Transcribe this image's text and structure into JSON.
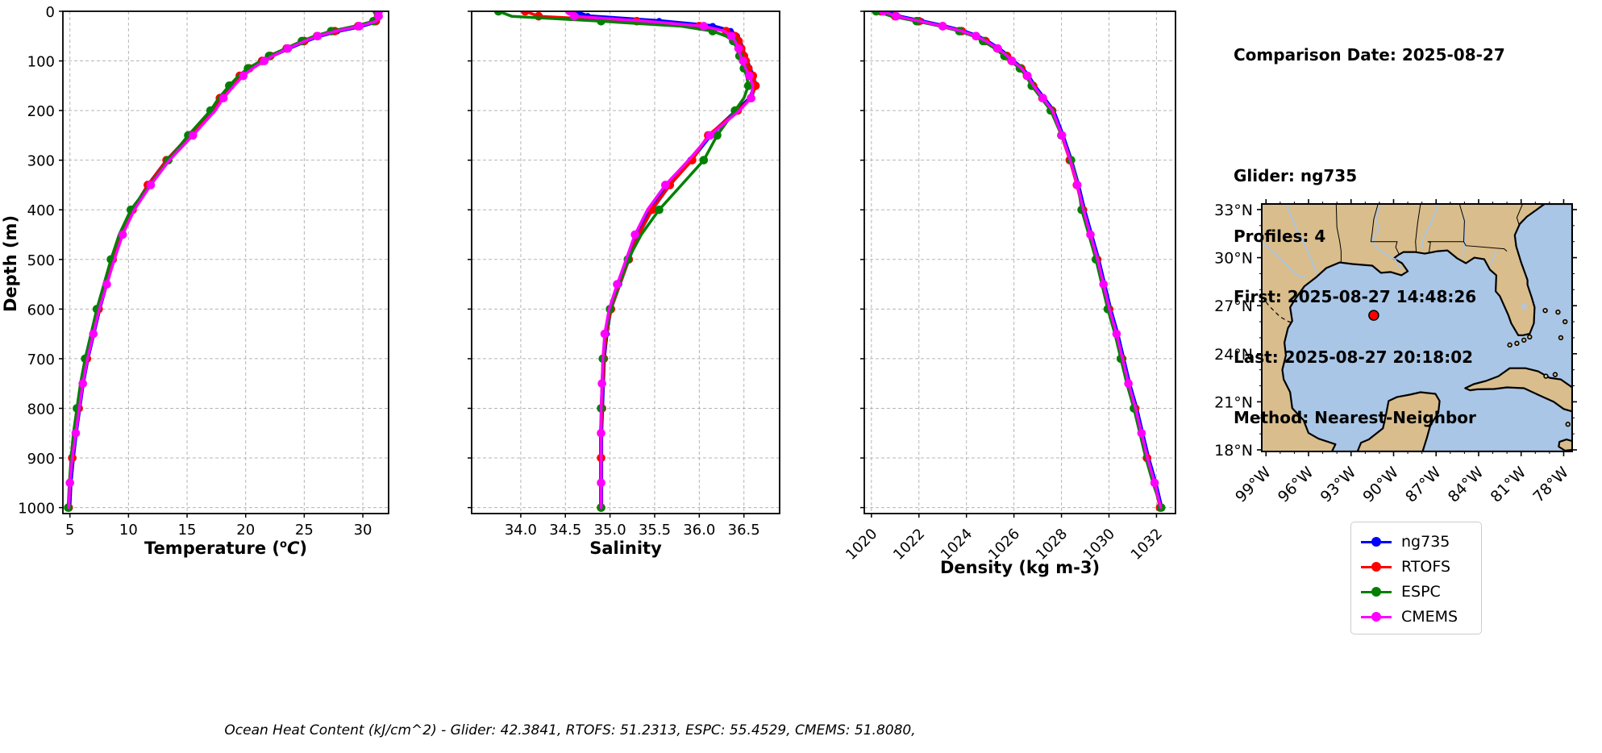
{
  "info_panel": {
    "title": "Comparison Date: 2025-08-27",
    "lines": [
      "Glider: ng735",
      "Profiles: 4",
      "First: 2025-08-27 14:48:26",
      "Last: 2025-08-27 20:18:02",
      "Method: Nearest-Neighbor"
    ]
  },
  "footer": "Ocean Heat Content (kJ/cm^2) - Glider: 42.3841,  RTOFS: 51.2313,  ESPC: 55.4529,  CMEMS: 51.8080,",
  "legend": {
    "items": [
      {
        "label": "ng735",
        "color": "#0000ff"
      },
      {
        "label": "RTOFS",
        "color": "#ff0000"
      },
      {
        "label": "ESPC",
        "color": "#008000"
      },
      {
        "label": "CMEMS",
        "color": "#ff00ff"
      }
    ]
  },
  "axes": {
    "ylabel": "Depth (m)",
    "depth_ticks": [
      0,
      100,
      200,
      300,
      400,
      500,
      600,
      700,
      800,
      900,
      1000
    ],
    "depth_lim": [
      0,
      1012
    ]
  },
  "chart_data": {
    "type": "line",
    "orientation": "vertical-profile",
    "grid": true,
    "legend_position": "lower right of figure",
    "depths": [
      0,
      10,
      20,
      30,
      40,
      50,
      60,
      75,
      90,
      100,
      115,
      130,
      150,
      175,
      200,
      250,
      300,
      350,
      400,
      450,
      500,
      550,
      600,
      650,
      700,
      750,
      800,
      850,
      900,
      950,
      1000
    ],
    "panels": [
      {
        "id": "temperature",
        "xlabel_pre": "Temperature (",
        "xlabel_sup": "o",
        "xlabel_it": "C",
        "xlabel_post": ")",
        "xlim": [
          4.4,
          32.2
        ],
        "xticks": [
          5,
          10,
          15,
          20,
          25,
          30
        ],
        "xtick_labels": [
          "5",
          "10",
          "15",
          "20",
          "25",
          "30"
        ],
        "tick_rotation": 0
      },
      {
        "id": "salinity",
        "xlabel": "Salinity",
        "xlim": [
          33.45,
          36.9
        ],
        "xticks": [
          34,
          34.5,
          35,
          35.5,
          36,
          36.5
        ],
        "xtick_labels": [
          "34.0",
          "34.5",
          "35.0",
          "35.5",
          "36.0",
          "36.5"
        ],
        "tick_rotation": 0
      },
      {
        "id": "density",
        "xlabel": "Density (kg m-3)",
        "xlim": [
          1019.7,
          1032.8
        ],
        "xticks": [
          1020,
          1022,
          1024,
          1026,
          1028,
          1030,
          1032
        ],
        "xtick_labels": [
          "1020",
          "1022",
          "1024",
          "1026",
          "1028",
          "1030",
          "1032"
        ],
        "tick_rotation": 45
      }
    ],
    "series": [
      {
        "name": "ng735-raw-profile",
        "color": "#00c8ff",
        "line_width": 2.5,
        "marker_size": 0,
        "in_legend": false,
        "marker_depths": [],
        "values": {
          "temperature": [
            31.55,
            31.5,
            31.3,
            29.9,
            27.9,
            26.3,
            25.2,
            23.7,
            22.3,
            21.6,
            20.5,
            19.7,
            18.9,
            18.0,
            17.3,
            15.4,
            13.35,
            11.75,
            10.45,
            9.45,
            8.75,
            8.12,
            7.52,
            7.02,
            6.52,
            6.12,
            5.82,
            5.52,
            5.27,
            5.07,
            4.97
          ],
          "salinity": [
            34.62,
            34.77,
            35.57,
            36.17,
            36.37,
            36.44,
            36.47,
            36.5,
            36.52,
            36.55,
            36.58,
            36.62,
            36.64,
            36.59,
            36.44,
            36.14,
            35.92,
            35.68,
            35.48,
            35.33,
            35.22,
            35.12,
            35.02,
            34.97,
            34.94,
            34.93,
            34.92,
            34.91,
            34.91,
            34.91,
            34.91
          ],
          "density": [
            1020.63,
            1021.13,
            1022.13,
            1023.08,
            1023.88,
            1024.48,
            1024.88,
            1025.38,
            1025.78,
            1025.98,
            1026.38,
            1026.63,
            1026.88,
            1027.28,
            1027.68,
            1028.08,
            1028.43,
            1028.73,
            1028.98,
            1029.28,
            1029.58,
            1029.83,
            1030.08,
            1030.38,
            1030.63,
            1030.88,
            1031.18,
            1031.43,
            1031.68,
            1031.98,
            1032.23
          ]
        }
      },
      {
        "name": "ng735",
        "color": "#0000ff",
        "line_width": 5,
        "marker_size": 4,
        "in_legend": true,
        "marker_depths": "all",
        "values": {
          "temperature": [
            31.4,
            31.4,
            31.2,
            29.8,
            27.8,
            26.2,
            25.1,
            23.6,
            22.2,
            21.5,
            20.4,
            19.6,
            18.8,
            17.9,
            17.2,
            15.3,
            13.3,
            11.7,
            10.4,
            9.4,
            8.7,
            8.1,
            7.5,
            7.0,
            6.5,
            6.1,
            5.8,
            5.5,
            5.25,
            5.05,
            4.95
          ],
          "salinity": [
            34.6,
            34.75,
            35.55,
            36.15,
            36.35,
            36.42,
            36.45,
            36.48,
            36.5,
            36.53,
            36.56,
            36.6,
            36.62,
            36.57,
            36.42,
            36.12,
            35.9,
            35.66,
            35.46,
            35.31,
            35.2,
            35.1,
            35.0,
            34.96,
            34.93,
            34.92,
            34.91,
            34.9,
            34.9,
            34.9,
            34.9
          ],
          "density": [
            1020.6,
            1021.1,
            1022.1,
            1023.05,
            1023.85,
            1024.45,
            1024.85,
            1025.35,
            1025.75,
            1025.95,
            1026.35,
            1026.6,
            1026.85,
            1027.25,
            1027.65,
            1028.05,
            1028.4,
            1028.7,
            1028.95,
            1029.25,
            1029.55,
            1029.8,
            1030.05,
            1030.35,
            1030.6,
            1030.85,
            1031.15,
            1031.4,
            1031.65,
            1031.95,
            1032.2
          ]
        }
      },
      {
        "name": "RTOFS",
        "color": "#ff0000",
        "line_width": 3.5,
        "marker_size": 5.3,
        "in_legend": true,
        "marker_depths": [
          0,
          10,
          20,
          30,
          40,
          50,
          60,
          75,
          90,
          100,
          115,
          130,
          150,
          175,
          200,
          250,
          300,
          350,
          400,
          500,
          600,
          700,
          800,
          900,
          1000
        ],
        "values": {
          "temperature": [
            31.3,
            31.3,
            31.1,
            29.6,
            27.6,
            26.1,
            25.0,
            23.5,
            22.1,
            21.4,
            20.3,
            19.5,
            18.7,
            17.8,
            17.1,
            15.2,
            13.25,
            11.65,
            10.35,
            9.35,
            8.65,
            8.05,
            7.45,
            6.95,
            6.45,
            6.05,
            5.75,
            5.45,
            5.2,
            5.0,
            4.9
          ],
          "salinity": [
            34.05,
            34.2,
            35.3,
            36.0,
            36.3,
            36.4,
            36.44,
            36.47,
            36.5,
            36.52,
            36.55,
            36.6,
            36.63,
            36.58,
            36.43,
            36.1,
            35.92,
            35.67,
            35.47,
            35.32,
            35.21,
            35.11,
            35.01,
            34.96,
            34.93,
            34.92,
            34.91,
            34.9,
            34.9,
            34.9,
            34.9
          ],
          "density": [
            1020.4,
            1021.0,
            1022.0,
            1023.0,
            1023.8,
            1024.4,
            1024.8,
            1025.3,
            1025.7,
            1025.9,
            1026.3,
            1026.55,
            1026.8,
            1027.2,
            1027.6,
            1028.0,
            1028.35,
            1028.65,
            1028.9,
            1029.2,
            1029.5,
            1029.75,
            1030.0,
            1030.3,
            1030.55,
            1030.8,
            1031.1,
            1031.35,
            1031.6,
            1031.9,
            1032.15
          ]
        }
      },
      {
        "name": "ESPC",
        "color": "#008000",
        "line_width": 3.5,
        "marker_size": 5.3,
        "in_legend": true,
        "marker_depths": [
          0,
          20,
          40,
          60,
          90,
          115,
          150,
          200,
          250,
          300,
          400,
          500,
          600,
          700,
          800,
          1000
        ],
        "values": {
          "temperature": [
            31.2,
            31.2,
            30.9,
            29.3,
            27.3,
            25.9,
            24.8,
            23.4,
            22.0,
            21.3,
            20.2,
            19.4,
            18.6,
            17.7,
            17.0,
            15.1,
            13.4,
            11.8,
            10.2,
            9.2,
            8.5,
            7.9,
            7.3,
            6.8,
            6.3,
            5.9,
            5.6,
            5.3,
            5.1,
            4.95,
            4.85
          ],
          "salinity": [
            33.75,
            33.9,
            34.9,
            35.8,
            36.15,
            36.3,
            36.38,
            36.42,
            36.45,
            36.48,
            36.5,
            36.53,
            36.55,
            36.5,
            36.4,
            36.2,
            36.05,
            35.8,
            35.55,
            35.35,
            35.2,
            35.1,
            35.0,
            34.95,
            34.92,
            34.91,
            34.9,
            34.9,
            34.9,
            34.9,
            34.9
          ],
          "density": [
            1020.2,
            1020.85,
            1021.9,
            1022.9,
            1023.7,
            1024.3,
            1024.7,
            1025.2,
            1025.6,
            1025.85,
            1026.25,
            1026.5,
            1026.75,
            1027.15,
            1027.55,
            1028.0,
            1028.4,
            1028.7,
            1028.85,
            1029.15,
            1029.45,
            1029.7,
            1029.95,
            1030.25,
            1030.5,
            1030.75,
            1031.05,
            1031.3,
            1031.55,
            1031.85,
            1032.2
          ]
        }
      },
      {
        "name": "CMEMS",
        "color": "#ff00ff",
        "line_width": 3.5,
        "marker_size": 5.3,
        "in_legend": true,
        "marker_depths": [
          0,
          10,
          30,
          50,
          75,
          100,
          130,
          175,
          250,
          350,
          450,
          550,
          650,
          750,
          850,
          950
        ],
        "values": {
          "temperature": [
            31.35,
            31.35,
            31.15,
            29.7,
            27.7,
            26.15,
            25.05,
            23.6,
            22.3,
            21.6,
            20.6,
            19.8,
            19.0,
            18.1,
            17.4,
            15.5,
            13.5,
            11.9,
            10.5,
            9.5,
            8.8,
            8.15,
            7.5,
            7.0,
            6.5,
            6.1,
            5.8,
            5.5,
            5.2,
            5.0,
            4.9
          ],
          "salinity": [
            34.55,
            34.6,
            35.4,
            36.05,
            36.28,
            36.36,
            36.4,
            36.44,
            36.46,
            36.49,
            36.52,
            36.56,
            36.6,
            36.58,
            36.45,
            36.12,
            35.88,
            35.62,
            35.42,
            35.28,
            35.18,
            35.08,
            34.99,
            34.94,
            34.92,
            34.91,
            34.9,
            34.9,
            34.9,
            34.9,
            34.9
          ],
          "density": [
            1020.5,
            1021.05,
            1022.05,
            1023.0,
            1023.8,
            1024.4,
            1024.82,
            1025.32,
            1025.72,
            1025.92,
            1026.32,
            1026.57,
            1026.82,
            1027.22,
            1027.62,
            1028.02,
            1028.37,
            1028.67,
            1028.92,
            1029.22,
            1029.52,
            1029.77,
            1030.02,
            1030.32,
            1030.57,
            1030.82,
            1031.12,
            1031.37,
            1031.62,
            1031.92,
            1032.18
          ]
        }
      }
    ]
  },
  "map": {
    "land_color": "#d9bd8c",
    "water_color": "#a9c6e6",
    "lake_color": "#b9c4cf",
    "extent": {
      "lon_min": -99.3,
      "lon_max": -77.4,
      "lat_min": 17.9,
      "lat_max": 33.35
    },
    "lat_ticks": [
      {
        "label": "33°N",
        "value": 33
      },
      {
        "label": "30°N",
        "value": 30
      },
      {
        "label": "27°N",
        "value": 27
      },
      {
        "label": "24°N",
        "value": 24
      },
      {
        "label": "21°N",
        "value": 21
      },
      {
        "label": "18°N",
        "value": 18
      }
    ],
    "lon_ticks": [
      {
        "label": "99°W",
        "value": -99
      },
      {
        "label": "96°W",
        "value": -96
      },
      {
        "label": "93°W",
        "value": -93
      },
      {
        "label": "90°W",
        "value": -90
      },
      {
        "label": "87°W",
        "value": -87
      },
      {
        "label": "84°W",
        "value": -84
      },
      {
        "label": "81°W",
        "value": -81
      },
      {
        "label": "78°W",
        "value": -78
      }
    ],
    "glider_marker": {
      "lon": -91.4,
      "lat": 26.4,
      "color": "#ff0000"
    }
  }
}
